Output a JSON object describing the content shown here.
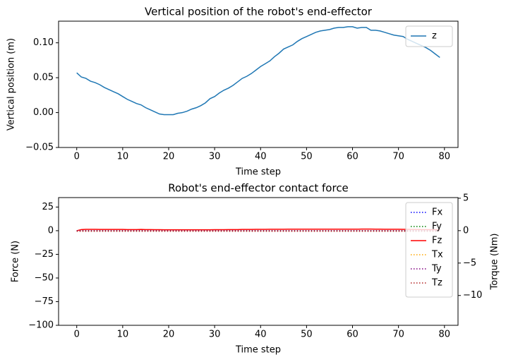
{
  "chart_data": [
    {
      "type": "line",
      "title": "Vertical position of the robot's end-effector",
      "x_label": "Time step",
      "y_label": "Vertical position (m)",
      "x": [
        0,
        1,
        2,
        3,
        4,
        5,
        6,
        7,
        8,
        9,
        10,
        11,
        12,
        13,
        14,
        15,
        16,
        17,
        18,
        19,
        20,
        21,
        22,
        23,
        24,
        25,
        26,
        27,
        28,
        29,
        30,
        31,
        32,
        33,
        34,
        35,
        36,
        37,
        38,
        39,
        40,
        41,
        42,
        43,
        44,
        45,
        46,
        47,
        48,
        49,
        50,
        51,
        52,
        53,
        54,
        55,
        56,
        57,
        58,
        59,
        60,
        61,
        62,
        63,
        64,
        65,
        66,
        67,
        68,
        69,
        70,
        71,
        72,
        73,
        74,
        75,
        76,
        77,
        78,
        79
      ],
      "series": [
        {
          "name": "z",
          "color": "#1f77b4",
          "linestyle": "solid",
          "values": [
            0.057,
            0.051,
            0.049,
            0.045,
            0.043,
            0.04,
            0.036,
            0.033,
            0.03,
            0.027,
            0.023,
            0.019,
            0.016,
            0.013,
            0.011,
            0.007,
            0.004,
            0.001,
            -0.002,
            -0.003,
            -0.003,
            -0.003,
            -0.001,
            0.0,
            0.002,
            0.005,
            0.007,
            0.01,
            0.014,
            0.02,
            0.023,
            0.028,
            0.032,
            0.035,
            0.039,
            0.044,
            0.049,
            0.052,
            0.056,
            0.061,
            0.066,
            0.07,
            0.074,
            0.08,
            0.085,
            0.091,
            0.094,
            0.097,
            0.102,
            0.106,
            0.109,
            0.112,
            0.115,
            0.117,
            0.118,
            0.119,
            0.121,
            0.122,
            0.122,
            0.123,
            0.123,
            0.121,
            0.122,
            0.122,
            0.118,
            0.118,
            0.117,
            0.115,
            0.113,
            0.111,
            0.11,
            0.109,
            0.105,
            0.102,
            0.099,
            0.096,
            0.093,
            0.089,
            0.084,
            0.079
          ]
        }
      ],
      "xlim": [
        -3.95,
        82.95
      ],
      "xticks": [
        0,
        10,
        20,
        30,
        40,
        50,
        60,
        70,
        80
      ],
      "ylim": [
        -0.05,
        0.131
      ],
      "yticks": [
        {
          "value": -0.05,
          "label": "−0.05"
        },
        {
          "value": 0,
          "label": "0.00"
        },
        0.05,
        {
          "value": 0.1,
          "label": "0.10"
        }
      ],
      "grid": false,
      "legend": "upper right"
    },
    {
      "type": "line",
      "title": "Robot's end-effector contact force",
      "x_label": "Time step",
      "y_label": "Force (N)",
      "y2_label": "Torque (Nm)",
      "x": [
        0,
        1,
        2,
        3,
        4,
        5,
        6,
        7,
        8,
        9,
        10,
        11,
        12,
        13,
        14,
        15,
        16,
        17,
        18,
        19,
        20,
        21,
        22,
        23,
        24,
        25,
        26,
        27,
        28,
        29,
        30,
        31,
        32,
        33,
        34,
        35,
        36,
        37,
        38,
        39,
        40,
        41,
        42,
        43,
        44,
        45,
        46,
        47,
        48,
        49,
        50,
        51,
        52,
        53,
        54,
        55,
        56,
        57,
        58,
        59,
        60,
        61,
        62,
        63,
        64,
        65,
        66,
        67,
        68,
        69,
        70,
        71,
        72,
        73,
        74,
        75,
        76,
        77,
        78,
        79
      ],
      "series": [
        {
          "name": "Fx",
          "color": "blue",
          "linestyle": "dotted",
          "values": [
            0,
            0,
            0,
            0,
            0,
            0,
            0,
            0,
            0,
            0,
            0,
            0,
            0,
            0,
            0,
            0,
            0,
            0,
            0,
            0,
            0,
            0,
            0,
            0,
            0,
            0,
            0,
            0,
            0,
            0,
            0,
            0,
            0,
            0,
            0,
            0,
            0,
            0,
            0,
            0,
            0,
            0,
            0,
            0,
            0,
            0,
            0,
            0,
            0,
            0,
            0,
            0,
            0,
            0,
            0,
            0,
            0,
            0,
            0,
            0,
            0,
            0,
            0,
            0,
            0,
            0,
            0,
            0,
            0,
            0,
            0,
            0,
            0,
            0,
            0,
            0,
            0,
            0,
            0,
            0
          ]
        },
        {
          "name": "Fy",
          "color": "green",
          "linestyle": "dotted",
          "values": [
            0,
            0,
            0,
            0,
            0,
            0,
            0,
            0,
            0,
            0,
            0,
            0,
            0,
            0,
            0,
            0,
            0,
            0,
            0,
            0,
            0,
            0,
            0,
            0,
            0,
            0,
            0,
            0,
            0,
            0,
            0,
            0,
            0,
            0,
            0,
            0,
            0,
            0,
            0,
            0,
            0,
            0,
            0,
            0,
            0,
            0,
            0,
            0,
            0,
            0,
            0,
            0,
            0,
            0,
            0,
            0,
            0,
            0,
            0,
            0,
            0,
            0,
            0,
            0,
            0,
            0,
            0,
            0,
            0,
            0,
            0,
            0,
            0,
            0,
            0,
            0,
            0,
            0,
            0,
            0
          ]
        },
        {
          "name": "Fz",
          "color": "red",
          "linestyle": "solid",
          "values": [
            0,
            1.2,
            1.4,
            1.4,
            1.4,
            1.3,
            1.3,
            1.3,
            1.3,
            1.3,
            1.3,
            1.2,
            1.2,
            1.2,
            1.3,
            1.2,
            1.2,
            1.1,
            1.1,
            1.0,
            1.0,
            1.0,
            1.0,
            1.0,
            1.0,
            1.0,
            1.0,
            1.0,
            1.0,
            1.0,
            1.1,
            1.1,
            1.1,
            1.2,
            1.2,
            1.2,
            1.3,
            1.3,
            1.3,
            1.4,
            1.4,
            1.4,
            1.5,
            1.5,
            1.5,
            1.5,
            1.6,
            1.6,
            1.6,
            1.6,
            1.6,
            1.6,
            1.6,
            1.6,
            1.6,
            1.6,
            1.6,
            1.6,
            1.6,
            1.6,
            1.6,
            1.6,
            1.7,
            1.7,
            1.7,
            1.6,
            1.6,
            1.5,
            1.5,
            1.5,
            1.5,
            1.4,
            1.4,
            1.3,
            1.3,
            1.2,
            1.2,
            1.1,
            1.1,
            1.0
          ]
        },
        {
          "name": "Tx",
          "color": "orange",
          "linestyle": "dotted",
          "axis": "y2",
          "values": [
            0,
            0,
            0,
            0,
            0,
            0,
            0,
            0,
            0,
            0,
            0,
            0,
            0,
            0,
            0,
            0,
            0,
            0,
            0,
            0,
            0,
            0,
            0,
            0,
            0,
            0,
            0,
            0,
            0,
            0,
            0,
            0,
            0,
            0,
            0,
            0,
            0,
            0,
            0,
            0,
            0,
            0,
            0,
            0,
            0,
            0,
            0,
            0,
            0,
            0,
            0,
            0,
            0,
            0,
            0,
            0,
            0,
            0,
            0,
            0,
            0,
            0,
            0,
            0,
            0,
            0,
            0,
            0,
            0,
            0,
            0,
            0,
            0,
            0,
            0,
            0,
            0,
            0,
            0,
            0
          ]
        },
        {
          "name": "Ty",
          "color": "purple",
          "linestyle": "dotted",
          "axis": "y2",
          "values": [
            0,
            0,
            0,
            0,
            0,
            0,
            0,
            0,
            0,
            0,
            0,
            0,
            0,
            0,
            0,
            0,
            0,
            0,
            0,
            0,
            0,
            0,
            0,
            0,
            0,
            0,
            0,
            0,
            0,
            0,
            0,
            0,
            0,
            0,
            0,
            0,
            0,
            0,
            0,
            0,
            0,
            0,
            0,
            0,
            0,
            0,
            0,
            0,
            0,
            0,
            0,
            0,
            0,
            0,
            0,
            0,
            0,
            0,
            0,
            0,
            0,
            0,
            0,
            0,
            0,
            0,
            0,
            0,
            0,
            0,
            0,
            0,
            0,
            0,
            0,
            0,
            0,
            0,
            0,
            0
          ]
        },
        {
          "name": "Tz",
          "color": "#b22222",
          "linestyle": "dotted",
          "axis": "y2",
          "values": [
            -0.1,
            -0.1,
            -0.1,
            -0.1,
            -0.1,
            -0.1,
            -0.1,
            -0.1,
            -0.1,
            -0.1,
            -0.1,
            -0.1,
            -0.1,
            -0.1,
            -0.1,
            -0.1,
            -0.1,
            -0.1,
            -0.1,
            -0.1,
            -0.1,
            -0.1,
            -0.1,
            -0.1,
            -0.1,
            -0.1,
            -0.1,
            -0.1,
            -0.1,
            -0.1,
            -0.1,
            -0.1,
            -0.1,
            -0.1,
            -0.1,
            -0.1,
            -0.1,
            -0.1,
            -0.1,
            -0.1,
            -0.1,
            -0.1,
            -0.1,
            -0.1,
            -0.1,
            -0.1,
            -0.1,
            -0.1,
            -0.1,
            -0.1,
            -0.1,
            -0.1,
            -0.1,
            -0.1,
            -0.1,
            -0.1,
            -0.1,
            -0.1,
            -0.1,
            -0.1,
            -0.1,
            -0.1,
            -0.1,
            -0.1,
            -0.1,
            -0.1,
            -0.1,
            -0.1,
            -0.1,
            -0.1,
            -0.1,
            -0.1,
            -0.1,
            -0.1,
            -0.1,
            -0.1,
            -0.1,
            -0.1,
            -0.1,
            -0.1
          ]
        }
      ],
      "xlim": [
        -3.95,
        82.95
      ],
      "xticks": [
        0,
        10,
        20,
        30,
        40,
        50,
        60,
        70,
        80
      ],
      "ylim": [
        -100,
        35
      ],
      "yticks": [
        {
          "value": -100,
          "label": "−100"
        },
        {
          "value": -75,
          "label": "−75"
        },
        {
          "value": -50,
          "label": "−50"
        },
        {
          "value": -25,
          "label": "−25"
        },
        0,
        25
      ],
      "y2lim": [
        -14.6,
        5.1
      ],
      "y2ticks": [
        {
          "value": -10,
          "label": "−10"
        },
        {
          "value": -5,
          "label": "−5"
        },
        0,
        5
      ],
      "grid": false,
      "legend": "upper right"
    }
  ]
}
